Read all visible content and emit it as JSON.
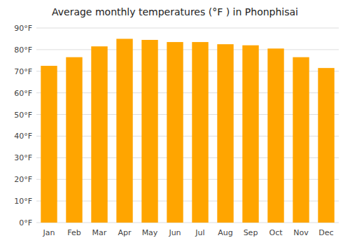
{
  "chart_data": {
    "type": "bar",
    "title": "Average monthly temperatures (°F ) in Phonphisai",
    "categories": [
      "Jan",
      "Feb",
      "Mar",
      "Apr",
      "May",
      "Jun",
      "Jul",
      "Aug",
      "Sep",
      "Oct",
      "Nov",
      "Dec"
    ],
    "values": [
      72.5,
      76.5,
      81.5,
      85.0,
      84.5,
      83.5,
      83.5,
      82.5,
      82.0,
      80.5,
      76.5,
      71.5
    ],
    "color": "#FFA500",
    "ylim": [
      0,
      90
    ],
    "yticks": [
      {
        "value": 0,
        "label": "0°F"
      },
      {
        "value": 10,
        "label": "10°F"
      },
      {
        "value": 20,
        "label": "20°F"
      },
      {
        "value": 30,
        "label": "30°F"
      },
      {
        "value": 40,
        "label": "40°F"
      },
      {
        "value": 50,
        "label": "50°F"
      },
      {
        "value": 60,
        "label": "60°F"
      },
      {
        "value": 70,
        "label": "70°F"
      },
      {
        "value": 80,
        "label": "80°F"
      },
      {
        "value": 90,
        "label": "90°F"
      }
    ],
    "grid": true
  }
}
